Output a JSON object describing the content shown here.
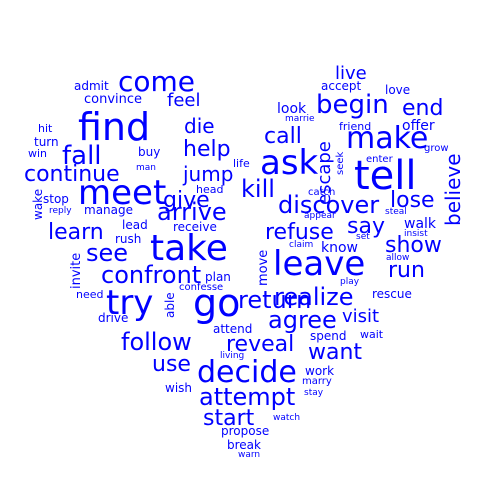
{
  "color": "#0000ff",
  "words": {
    "find": "find",
    "meet": "meet",
    "tell": "tell",
    "take": "take",
    "go": "go",
    "try": "try",
    "leave": "leave",
    "ask": "ask",
    "make": "make",
    "decide": "decide",
    "come": "come",
    "fall": "fall",
    "begin": "begin",
    "arrive": "arrive",
    "see": "see",
    "confront": "confront",
    "discover": "discover",
    "follow": "follow",
    "attempt": "attempt",
    "realize": "realize",
    "agree": "agree",
    "return": "return",
    "kill": "kill",
    "continue": "continue",
    "help": "help",
    "give": "give",
    "show": "show",
    "run": "run",
    "refuse": "refuse",
    "want": "want",
    "reveal": "reveal",
    "start": "start",
    "use": "use",
    "learn": "learn",
    "call": "call",
    "end": "end",
    "lose": "lose",
    "live": "live",
    "believe": "believe",
    "escape": "escape",
    "die": "die",
    "feel": "feel",
    "jump": "jump",
    "say": "say",
    "visit": "visit",
    "look": "look",
    "accept": "accept",
    "love": "love",
    "offer": "offer",
    "friend": "friend",
    "marrie": "marrie",
    "grow": "grow",
    "enter": "enter",
    "seek": "seek",
    "catch": "catch",
    "appear": "appear",
    "steal": "steal",
    "walk": "walk",
    "insist": "insist",
    "allow": "allow",
    "set": "set",
    "claim": "claim",
    "know": "know",
    "play": "play",
    "rescue": "rescue",
    "spend": "spend",
    "wait": "wait",
    "move": "move",
    "plan": "plan",
    "confesse": "confesse",
    "attend": "attend",
    "living": "living",
    "work": "work",
    "marry": "marry",
    "stay": "stay",
    "wish": "wish",
    "watch": "watch",
    "propose": "propose",
    "break": "break",
    "warn": "warn",
    "admit": "admit",
    "convince": "convince",
    "hit": "hit",
    "turn": "turn",
    "win": "win",
    "buy": "buy",
    "man": "man",
    "life": "life",
    "head": "head",
    "stop": "stop",
    "wake": "wake",
    "reply": "reply",
    "manage": "manage",
    "lead": "lead",
    "receive": "receive",
    "rush": "rush",
    "invite": "invite",
    "need": "need",
    "able": "able",
    "drive": "drive"
  }
}
